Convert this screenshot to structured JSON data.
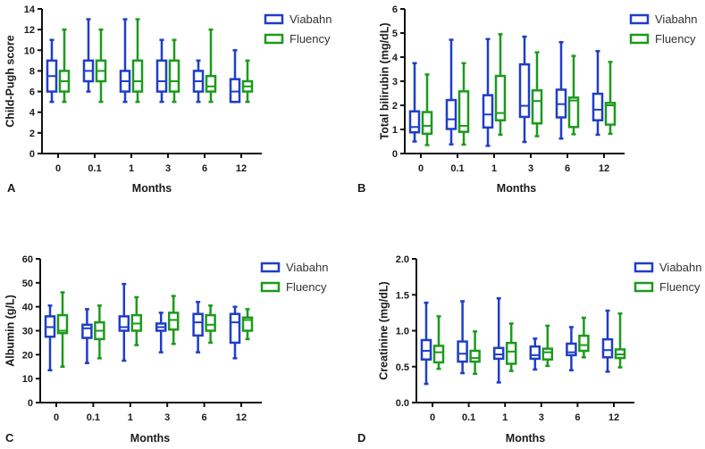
{
  "colors": {
    "Viabahn": "#1f3dc8",
    "Fluency": "#1c9a1c",
    "axis": "#111111"
  },
  "chart_data": [
    {
      "panel": "A",
      "type": "box",
      "xlabel": "Months",
      "ylabel": "Child-Pugh score",
      "categories": [
        "0",
        "0.1",
        "1",
        "3",
        "6",
        "12"
      ],
      "ylim": [
        0,
        14
      ],
      "yticks": [
        "0",
        "2",
        "4",
        "6",
        "8",
        "10",
        "12",
        "14"
      ],
      "ytick_values": [
        0,
        2,
        4,
        6,
        8,
        10,
        12,
        14
      ],
      "legend": "top-right",
      "series": [
        {
          "name": "Viabahn",
          "boxes": [
            [
              5,
              6,
              7.5,
              9,
              11
            ],
            [
              6,
              7,
              8,
              9,
              13
            ],
            [
              5,
              6,
              7,
              8,
              13
            ],
            [
              5,
              6,
              7,
              9,
              11
            ],
            [
              5,
              6,
              7,
              8,
              9
            ],
            [
              5,
              5,
              6,
              7.2,
              10
            ]
          ]
        },
        {
          "name": "Fluency",
          "boxes": [
            [
              5,
              6,
              7,
              8,
              12
            ],
            [
              5,
              7,
              8,
              9,
              12
            ],
            [
              5,
              6,
              7,
              9,
              13
            ],
            [
              5,
              6,
              7,
              9,
              11
            ],
            [
              5,
              6,
              6.5,
              7.5,
              12
            ],
            [
              5,
              6,
              6.5,
              7,
              9
            ]
          ]
        }
      ]
    },
    {
      "panel": "B",
      "type": "box",
      "xlabel": "Months",
      "ylabel": "Total bilirubin (mg/dL)",
      "categories": [
        "0",
        "0.1",
        "1",
        "3",
        "6",
        "12"
      ],
      "ylim": [
        0,
        6
      ],
      "yticks": [
        "0",
        "1",
        "2",
        "3",
        "4",
        "5",
        "6"
      ],
      "ytick_values": [
        0,
        1,
        2,
        3,
        4,
        5,
        6
      ],
      "legend": "top-right",
      "series": [
        {
          "name": "Viabahn",
          "boxes": [
            [
              0.5,
              0.88,
              1.1,
              1.75,
              3.75
            ],
            [
              0.38,
              1.02,
              1.42,
              2.22,
              4.72
            ],
            [
              0.32,
              1.08,
              1.62,
              2.42,
              4.75
            ],
            [
              0.48,
              1.52,
              1.98,
              3.7,
              4.85
            ],
            [
              0.62,
              1.5,
              2.05,
              2.65,
              4.62
            ],
            [
              0.78,
              1.38,
              1.82,
              2.48,
              4.25
            ]
          ]
        },
        {
          "name": "Fluency",
          "boxes": [
            [
              0.35,
              0.82,
              1.15,
              1.72,
              3.28
            ],
            [
              0.37,
              0.9,
              1.15,
              2.58,
              3.75
            ],
            [
              0.78,
              1.38,
              1.68,
              3.22,
              4.95
            ],
            [
              0.72,
              1.25,
              2.18,
              2.62,
              4.2
            ],
            [
              0.8,
              1.1,
              2.2,
              2.32,
              4.05
            ],
            [
              0.82,
              1.2,
              2.0,
              2.1,
              3.8
            ]
          ]
        }
      ]
    },
    {
      "panel": "C",
      "type": "box",
      "xlabel": "Months",
      "ylabel": "Albumin (g/L)",
      "categories": [
        "0",
        "0.1",
        "1",
        "3",
        "6",
        "12"
      ],
      "ylim": [
        0,
        60
      ],
      "yticks": [
        "0",
        "10",
        "20",
        "30",
        "40",
        "50",
        "60"
      ],
      "ytick_values": [
        0,
        10,
        20,
        30,
        40,
        50,
        60
      ],
      "legend": "top-right",
      "series": [
        {
          "name": "Viabahn",
          "boxes": [
            [
              13.5,
              27.5,
              31.5,
              36,
              40.5
            ],
            [
              16.5,
              27,
              31,
              32.5,
              39
            ],
            [
              17.5,
              30,
              31.5,
              36,
              49.5
            ],
            [
              21,
              30,
              31.5,
              33,
              37.5
            ],
            [
              21,
              28,
              33.5,
              37,
              42
            ],
            [
              18.5,
              25,
              33.5,
              37,
              40
            ]
          ]
        },
        {
          "name": "Fluency",
          "boxes": [
            [
              15,
              29,
              30,
              36.5,
              46
            ],
            [
              18.5,
              26.5,
              30,
              33.5,
              40.5
            ],
            [
              24,
              30,
              33,
              36.5,
              44
            ],
            [
              24.5,
              30.5,
              34.5,
              37.5,
              44.5
            ],
            [
              25,
              30,
              32.5,
              36.5,
              40.5
            ],
            [
              26.5,
              30,
              34.5,
              35.5,
              39
            ]
          ]
        }
      ]
    },
    {
      "panel": "D",
      "type": "box",
      "xlabel": "Months",
      "ylabel": "Creatinine (mg/dL)",
      "categories": [
        "0",
        "0.1",
        "1",
        "3",
        "6",
        "12"
      ],
      "ylim": [
        0,
        2
      ],
      "yticks": [
        "0.0",
        "0.5",
        "1.0",
        "1.5",
        "2.0"
      ],
      "ytick_values": [
        0,
        0.5,
        1,
        1.5,
        2
      ],
      "legend": "top-right",
      "series": [
        {
          "name": "Viabahn",
          "boxes": [
            [
              0.26,
              0.6,
              0.72,
              0.87,
              1.39
            ],
            [
              0.41,
              0.57,
              0.68,
              0.85,
              1.41
            ],
            [
              0.28,
              0.61,
              0.67,
              0.76,
              1.45
            ],
            [
              0.46,
              0.61,
              0.66,
              0.78,
              0.89
            ],
            [
              0.45,
              0.66,
              0.7,
              0.82,
              1.05
            ],
            [
              0.43,
              0.63,
              0.73,
              0.88,
              1.28
            ]
          ]
        },
        {
          "name": "Fluency",
          "boxes": [
            [
              0.47,
              0.56,
              0.7,
              0.79,
              1.2
            ],
            [
              0.4,
              0.57,
              0.62,
              0.72,
              0.99
            ],
            [
              0.44,
              0.54,
              0.71,
              0.83,
              1.1
            ],
            [
              0.51,
              0.6,
              0.7,
              0.75,
              1.07
            ],
            [
              0.63,
              0.72,
              0.8,
              0.93,
              1.18
            ],
            [
              0.49,
              0.62,
              0.67,
              0.74,
              1.24
            ]
          ]
        }
      ]
    }
  ]
}
